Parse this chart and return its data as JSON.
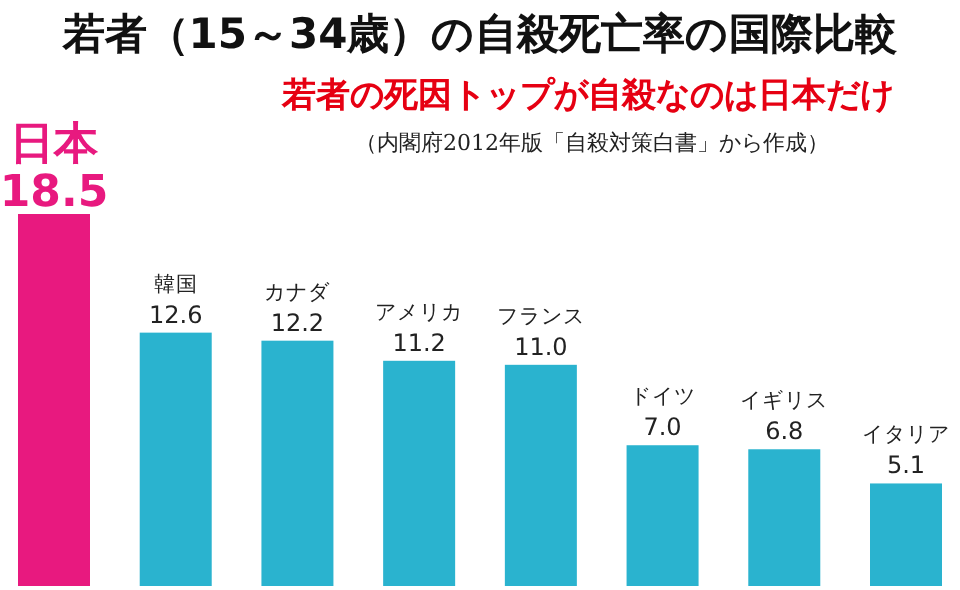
{
  "chart_data": {
    "type": "bar",
    "title": "若者（15～34歳）の自殺死亡率の国際比較",
    "subtitle": "若者の死因トップが自殺なのは日本だけ",
    "annotations": [
      "（内閣府2012年版「自殺対策白書」から作成）"
    ],
    "categories": [
      "日本",
      "韓国",
      "カナダ",
      "アメリカ",
      "フランス",
      "ドイツ",
      "イギリス",
      "イタリア"
    ],
    "values": [
      18.5,
      12.6,
      12.2,
      11.2,
      11.0,
      7.0,
      6.8,
      5.1
    ],
    "value_labels": [
      "18.5",
      "12.6",
      "12.2",
      "11.2",
      "11.0",
      "7.0",
      "6.8",
      "5.1"
    ],
    "colors": [
      "#e8197f",
      "#2ab3cf",
      "#2ab3cf",
      "#2ab3cf",
      "#2ab3cf",
      "#2ab3cf",
      "#2ab3cf",
      "#2ab3cf"
    ]
  }
}
